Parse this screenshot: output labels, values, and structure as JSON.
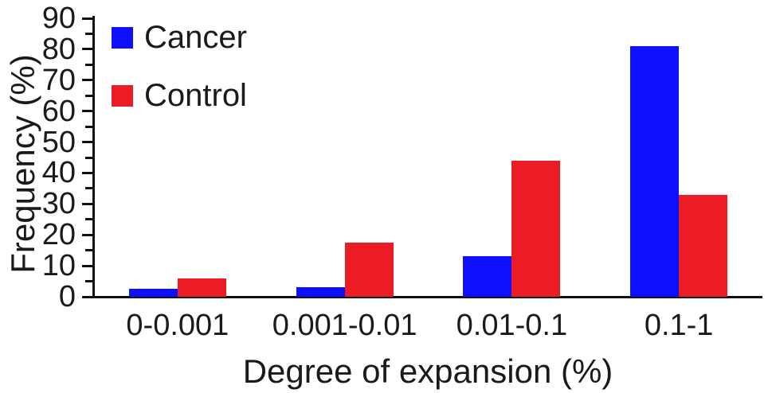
{
  "chart_data": {
    "type": "bar",
    "title": "",
    "xlabel": "Degree of expansion (%)",
    "ylabel": "Frequency (%)",
    "categories": [
      "0-0.001",
      "0.001-0.01",
      "0.01-0.1",
      "0.1-1"
    ],
    "series": [
      {
        "name": "Cancer",
        "color": "#0f0fff",
        "values": [
          2.5,
          3,
          13,
          81
        ]
      },
      {
        "name": "Control",
        "color": "#ec1c24",
        "values": [
          6,
          17.5,
          44,
          33
        ]
      }
    ],
    "ylim": [
      0,
      90
    ],
    "ytick_step": 10,
    "ytick_minor_step": 5,
    "ytick_labels": [
      "0",
      "10",
      "20",
      "30",
      "40",
      "50",
      "60",
      "70",
      "80",
      "90"
    ],
    "grid": false,
    "legend_position": "top-left",
    "axis_color": "#111111",
    "text_color": "#1a1a1a"
  }
}
